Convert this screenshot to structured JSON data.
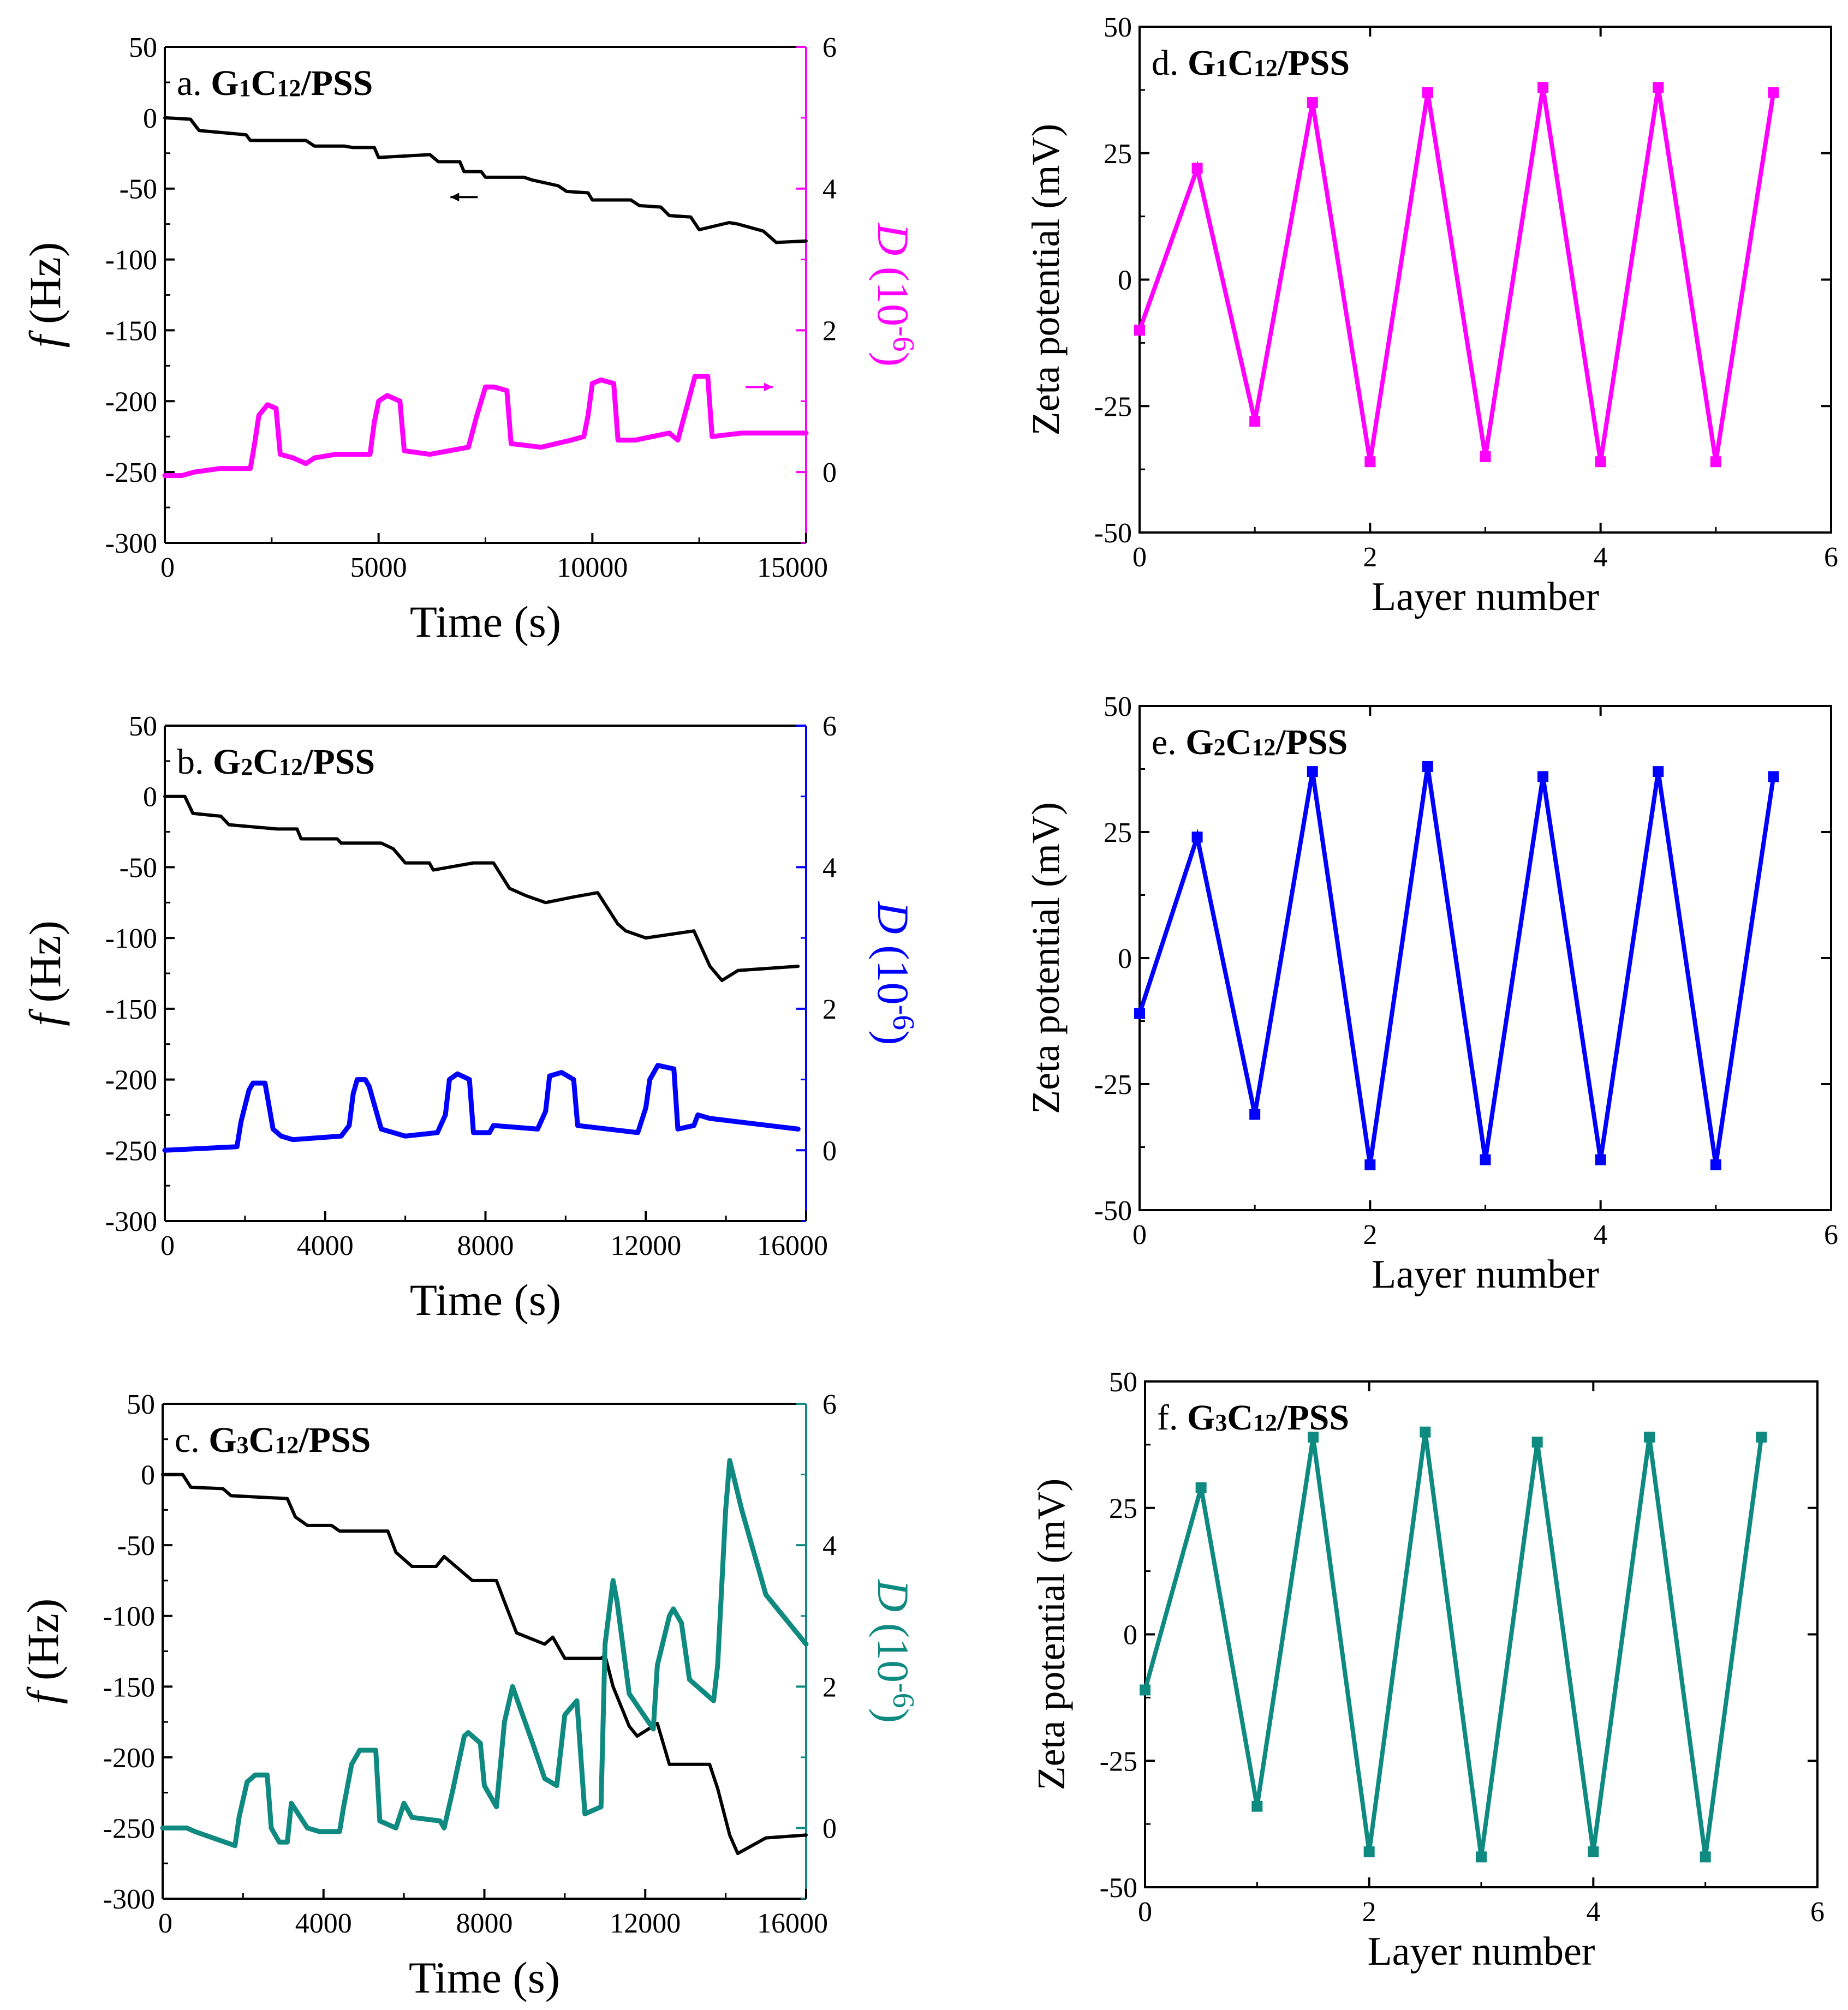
{
  "chart_data": [
    {
      "id": "a",
      "type": "line",
      "panel_letter": "a.",
      "title_parts": [
        {
          "t": "G",
          "sub": false
        },
        {
          "t": "1",
          "sub": true
        },
        {
          "t": "C",
          "sub": false
        },
        {
          "t": "12",
          "sub": true
        },
        {
          "t": "/PSS",
          "sub": false
        }
      ],
      "xlabel": "Time (s)",
      "ylabel_f_letter": "f",
      "ylabel_f_unit": " (Hz)",
      "ylabel_d_letter": "D",
      "ylabel_d_unit": " (10",
      "ylabel_d_exp": "-6",
      "ylabel_d_close": ")",
      "xlim": [
        0,
        15000
      ],
      "xticks": [
        0,
        5000,
        10000,
        15000
      ],
      "ylim_f": [
        -300,
        50
      ],
      "yticks_f": [
        50,
        0,
        -50,
        -100,
        -150,
        -200,
        -250,
        -300
      ],
      "ylim_d": [
        -1,
        6
      ],
      "yticks_d": [
        6,
        4,
        2,
        0
      ],
      "d_color": "#ff00ff",
      "f_color": "#000000",
      "arrows": [
        {
          "series": "frequency",
          "direction": "left",
          "x": 7000,
          "y": -56
        },
        {
          "series": "dissipation",
          "direction": "right",
          "x": 13900,
          "y": 1.2
        }
      ],
      "series": [
        {
          "name": "frequency",
          "axis": "left",
          "x": [
            0,
            600,
            800,
            1900,
            2000,
            3300,
            3500,
            4200,
            4400,
            4900,
            5000,
            6200,
            6400,
            6900,
            7000,
            7400,
            7500,
            8400,
            8600,
            9200,
            9400,
            9900,
            10000,
            10900,
            11100,
            11600,
            11800,
            12300,
            12500,
            13200,
            13400,
            14000,
            14300,
            15000
          ],
          "values": [
            0,
            -1,
            -9,
            -12,
            -16,
            -16,
            -20,
            -20,
            -21,
            -21,
            -28,
            -26,
            -31,
            -31,
            -38,
            -38,
            -42,
            -42,
            -44,
            -48,
            -52,
            -53,
            -58,
            -58,
            -62,
            -63,
            -69,
            -70,
            -79,
            -74,
            -75,
            -80,
            -88,
            -87
          ]
        },
        {
          "name": "dissipation",
          "axis": "right",
          "x": [
            0,
            400,
            700,
            1300,
            2000,
            2100,
            2200,
            2400,
            2600,
            2700,
            3000,
            3300,
            3500,
            4000,
            4800,
            4900,
            5000,
            5200,
            5500,
            5600,
            6200,
            7100,
            7300,
            7500,
            7700,
            8000,
            8100,
            8800,
            9500,
            9800,
            9900,
            10000,
            10200,
            10500,
            10600,
            11000,
            11800,
            12000,
            12200,
            12400,
            12700,
            12800,
            13500,
            15000
          ],
          "values": [
            -0.05,
            -0.05,
            0.0,
            0.05,
            0.05,
            0.4,
            0.8,
            0.95,
            0.9,
            0.25,
            0.2,
            0.12,
            0.2,
            0.25,
            0.25,
            0.7,
            1.0,
            1.08,
            1.0,
            0.3,
            0.25,
            0.35,
            0.8,
            1.2,
            1.2,
            1.15,
            0.4,
            0.35,
            0.45,
            0.5,
            0.8,
            1.25,
            1.3,
            1.25,
            0.45,
            0.45,
            0.55,
            0.45,
            0.9,
            1.35,
            1.35,
            0.5,
            0.55,
            0.55
          ]
        }
      ]
    },
    {
      "id": "b",
      "type": "line",
      "panel_letter": "b.",
      "title_parts": [
        {
          "t": "G",
          "sub": false
        },
        {
          "t": "2",
          "sub": true
        },
        {
          "t": "C",
          "sub": false
        },
        {
          "t": "12",
          "sub": true
        },
        {
          "t": "/PSS",
          "sub": false
        }
      ],
      "xlabel": "Time (s)",
      "ylabel_f_letter": "f",
      "ylabel_f_unit": " (Hz)",
      "ylabel_d_letter": "D",
      "ylabel_d_unit": " (10",
      "ylabel_d_exp": "-6",
      "ylabel_d_close": ")",
      "xlim": [
        0,
        16000
      ],
      "xticks": [
        0,
        4000,
        8000,
        12000,
        16000
      ],
      "ylim_f": [
        -300,
        50
      ],
      "yticks_f": [
        50,
        0,
        -50,
        -100,
        -150,
        -200,
        -250,
        -300
      ],
      "ylim_d": [
        -1,
        6
      ],
      "yticks_d": [
        6,
        4,
        2,
        0
      ],
      "d_color": "#0000ff",
      "f_color": "#000000",
      "arrows": [],
      "series": [
        {
          "name": "frequency",
          "axis": "left",
          "x": [
            0,
            500,
            700,
            1400,
            1600,
            2800,
            3300,
            3400,
            4300,
            4400,
            5400,
            5700,
            6000,
            6600,
            6700,
            7700,
            8200,
            8600,
            9000,
            9500,
            10200,
            10800,
            11300,
            11500,
            12000,
            13200,
            13600,
            13900,
            14300,
            15800
          ],
          "values": [
            0,
            0,
            -12,
            -14,
            -20,
            -23,
            -23,
            -30,
            -30,
            -33,
            -33,
            -37,
            -47,
            -47,
            -52,
            -47,
            -47,
            -65,
            -70,
            -75,
            -71,
            -68,
            -90,
            -95,
            -100,
            -95,
            -120,
            -130,
            -123,
            -120
          ]
        },
        {
          "name": "dissipation",
          "axis": "right",
          "x": [
            0,
            1800,
            1900,
            2100,
            2200,
            2500,
            2700,
            2900,
            3200,
            4400,
            4600,
            4700,
            4800,
            5000,
            5100,
            5400,
            6000,
            6800,
            7000,
            7100,
            7300,
            7600,
            7700,
            8100,
            8200,
            9300,
            9500,
            9600,
            9900,
            10200,
            10300,
            11800,
            12000,
            12100,
            12300,
            12700,
            12800,
            13200,
            13300,
            13600,
            15800
          ],
          "values": [
            0.0,
            0.05,
            0.4,
            0.85,
            0.95,
            0.95,
            0.3,
            0.2,
            0.15,
            0.2,
            0.35,
            0.8,
            1.0,
            1.0,
            0.9,
            0.3,
            0.2,
            0.25,
            0.5,
            1.0,
            1.08,
            1.0,
            0.25,
            0.25,
            0.35,
            0.3,
            0.55,
            1.05,
            1.1,
            1.0,
            0.35,
            0.25,
            0.6,
            1.0,
            1.2,
            1.15,
            0.3,
            0.35,
            0.5,
            0.45,
            0.3
          ]
        }
      ]
    },
    {
      "id": "c",
      "type": "line",
      "panel_letter": "c.",
      "title_parts": [
        {
          "t": "G",
          "sub": false
        },
        {
          "t": "3",
          "sub": true
        },
        {
          "t": "C",
          "sub": false
        },
        {
          "t": "12",
          "sub": true
        },
        {
          "t": "/PSS",
          "sub": false
        }
      ],
      "xlabel": "Time (s)",
      "ylabel_f_letter": "f",
      "ylabel_f_unit": " (Hz)",
      "ylabel_d_letter": "D",
      "ylabel_d_unit": " (10",
      "ylabel_d_exp": "-6",
      "ylabel_d_close": ")",
      "xlim": [
        0,
        16000
      ],
      "xticks": [
        0,
        4000,
        8000,
        12000,
        16000
      ],
      "ylim_f": [
        -300,
        50
      ],
      "yticks_f": [
        50,
        0,
        -50,
        -100,
        -150,
        -200,
        -250,
        -300
      ],
      "ylim_d": [
        -1,
        6
      ],
      "yticks_d": [
        6,
        4,
        2,
        0
      ],
      "d_color": "#0f8a80",
      "f_color": "#000000",
      "arrows": [],
      "series": [
        {
          "name": "frequency",
          "axis": "left",
          "x": [
            0,
            500,
            700,
            1500,
            1700,
            3100,
            3300,
            3600,
            4200,
            4400,
            5600,
            5800,
            6200,
            6800,
            7000,
            7700,
            8300,
            8500,
            8800,
            9500,
            9700,
            9900,
            10000,
            10900,
            11000,
            11200,
            11600,
            11800,
            12300,
            12600,
            13600,
            13800,
            14100,
            14300,
            15000,
            16000
          ],
          "values": [
            0,
            0,
            -9,
            -10,
            -15,
            -17,
            -30,
            -36,
            -36,
            -40,
            -40,
            -55,
            -65,
            -65,
            -58,
            -75,
            -75,
            -90,
            -112,
            -120,
            -115,
            -125,
            -130,
            -130,
            -128,
            -150,
            -178,
            -185,
            -176,
            -205,
            -205,
            -222,
            -255,
            -268,
            -257,
            -255
          ]
        },
        {
          "name": "dissipation",
          "axis": "right",
          "x": [
            0,
            600,
            800,
            1800,
            1900,
            2100,
            2300,
            2600,
            2700,
            2900,
            3100,
            3200,
            3600,
            3900,
            4400,
            4500,
            4700,
            4900,
            5300,
            5400,
            5800,
            6000,
            6200,
            6900,
            7000,
            7200,
            7500,
            7600,
            7900,
            8000,
            8300,
            8500,
            8700,
            9200,
            9500,
            9800,
            10000,
            10300,
            10500,
            10900,
            11000,
            11200,
            11300,
            11600,
            12200,
            12300,
            12600,
            12700,
            12900,
            13100,
            13700,
            13800,
            14000,
            14100,
            14400,
            15000,
            16000
          ],
          "values": [
            0.0,
            0.0,
            -0.05,
            -0.25,
            0.15,
            0.65,
            0.75,
            0.75,
            0.0,
            -0.2,
            -0.2,
            0.35,
            0.0,
            -0.05,
            -0.05,
            0.3,
            0.9,
            1.1,
            1.1,
            0.1,
            0.0,
            0.35,
            0.15,
            0.1,
            0.0,
            0.5,
            1.3,
            1.35,
            1.2,
            0.6,
            0.3,
            1.5,
            2.0,
            1.2,
            0.7,
            0.6,
            1.6,
            1.8,
            0.2,
            0.3,
            2.6,
            3.5,
            3.2,
            1.9,
            1.4,
            2.3,
            3.0,
            3.1,
            2.9,
            2.1,
            1.8,
            2.3,
            4.5,
            5.2,
            4.5,
            3.3,
            2.6
          ]
        }
      ]
    },
    {
      "id": "d",
      "type": "line",
      "panel_letter": "d.",
      "title_parts": [
        {
          "t": "G",
          "sub": false
        },
        {
          "t": "1",
          "sub": true
        },
        {
          "t": "C",
          "sub": false
        },
        {
          "t": "12",
          "sub": true
        },
        {
          "t": "/PSS",
          "sub": false
        }
      ],
      "xlabel": "Layer number",
      "ylabel": "Zeta potential (mV)",
      "xlim": [
        0,
        6
      ],
      "xticks": [
        0,
        2,
        4,
        6
      ],
      "ylim": [
        -50,
        50
      ],
      "yticks": [
        50,
        25,
        0,
        -25,
        -50
      ],
      "color": "#ff00ff",
      "x": [
        0,
        0.5,
        1,
        1.5,
        2,
        2.5,
        3,
        3.5,
        4,
        4.5,
        5,
        5.5
      ],
      "values": [
        -10,
        22,
        -28,
        35,
        -36,
        37,
        -35,
        38,
        -36,
        38,
        -36,
        37
      ]
    },
    {
      "id": "e",
      "type": "line",
      "panel_letter": "e.",
      "title_parts": [
        {
          "t": "G",
          "sub": false
        },
        {
          "t": "2",
          "sub": true
        },
        {
          "t": "C",
          "sub": false
        },
        {
          "t": "12",
          "sub": true
        },
        {
          "t": "/PSS",
          "sub": false
        }
      ],
      "xlabel": "Layer number",
      "ylabel": "Zeta potential (mV)",
      "xlim": [
        0,
        6
      ],
      "xticks": [
        0,
        2,
        4,
        6
      ],
      "ylim": [
        -50,
        50
      ],
      "yticks": [
        50,
        25,
        0,
        -25,
        -50
      ],
      "color": "#0000ff",
      "x": [
        0,
        0.5,
        1,
        1.5,
        2,
        2.5,
        3,
        3.5,
        4,
        4.5,
        5,
        5.5
      ],
      "values": [
        -11,
        24,
        -31,
        37,
        -41,
        38,
        -40,
        36,
        -40,
        37,
        -41,
        36
      ]
    },
    {
      "id": "f",
      "type": "line",
      "panel_letter": "f.",
      "title_parts": [
        {
          "t": "G",
          "sub": false
        },
        {
          "t": "3",
          "sub": true
        },
        {
          "t": "C",
          "sub": false
        },
        {
          "t": "12",
          "sub": true
        },
        {
          "t": "/PSS",
          "sub": false
        }
      ],
      "xlabel": "Layer number",
      "ylabel": "Zeta potential (mV)",
      "xlim": [
        0,
        6
      ],
      "xticks": [
        0,
        2,
        4,
        6
      ],
      "ylim": [
        -50,
        50
      ],
      "yticks": [
        50,
        25,
        0,
        -25,
        -50
      ],
      "color": "#0f8a80",
      "x": [
        0,
        0.5,
        1,
        1.5,
        2,
        2.5,
        3,
        3.5,
        4,
        4.5,
        5,
        5.5
      ],
      "values": [
        -11,
        29,
        -34,
        39,
        -43,
        40,
        -44,
        38,
        -43,
        39,
        -44,
        39
      ]
    }
  ]
}
